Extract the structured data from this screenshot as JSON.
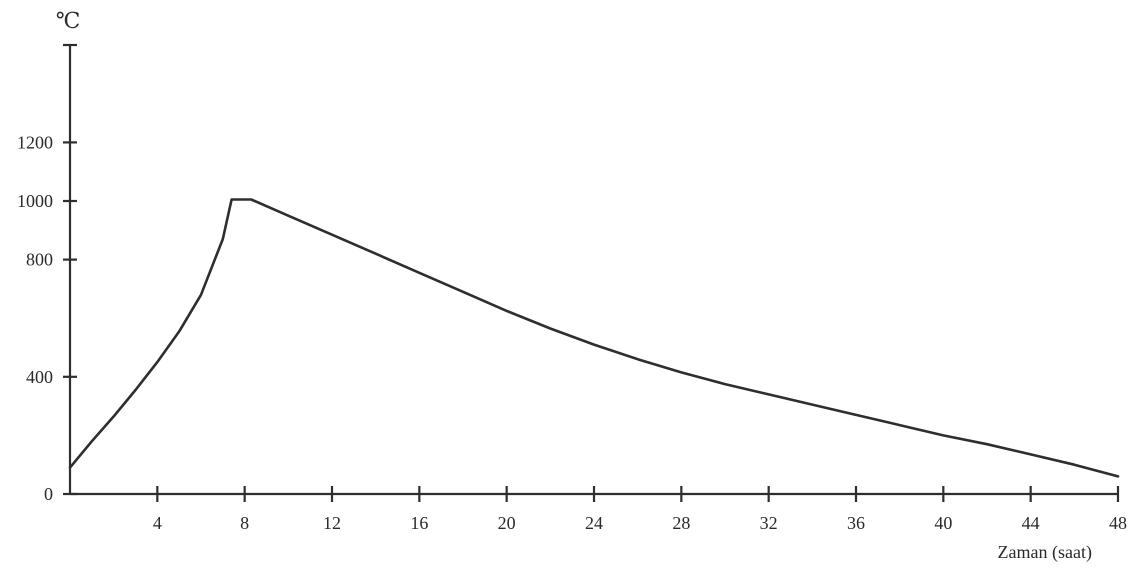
{
  "chart_data": {
    "type": "line",
    "title": "",
    "ylabel": "℃",
    "xlabel": "Zaman (saat)",
    "xlim": [
      0,
      48
    ],
    "ylim": [
      0,
      1200
    ],
    "x_ticks": [
      4,
      8,
      12,
      16,
      20,
      24,
      28,
      32,
      36,
      40,
      44,
      48
    ],
    "y_ticks": [
      0,
      400,
      800,
      1000,
      1200
    ],
    "grid": false,
    "legend": "none",
    "series": [
      {
        "x": [
          0,
          1,
          2,
          3,
          4,
          5,
          6,
          7,
          7.4,
          8.3,
          10,
          12,
          14,
          16,
          18,
          20,
          22,
          24,
          26,
          28,
          30,
          32,
          34,
          36,
          38,
          40,
          42,
          44,
          46,
          48
        ],
        "y": [
          90,
          180,
          265,
          355,
          450,
          555,
          680,
          870,
          1005,
          1005,
          950,
          885,
          820,
          755,
          690,
          625,
          565,
          510,
          460,
          415,
          375,
          340,
          305,
          270,
          235,
          200,
          170,
          135,
          100,
          60
        ]
      }
    ]
  }
}
